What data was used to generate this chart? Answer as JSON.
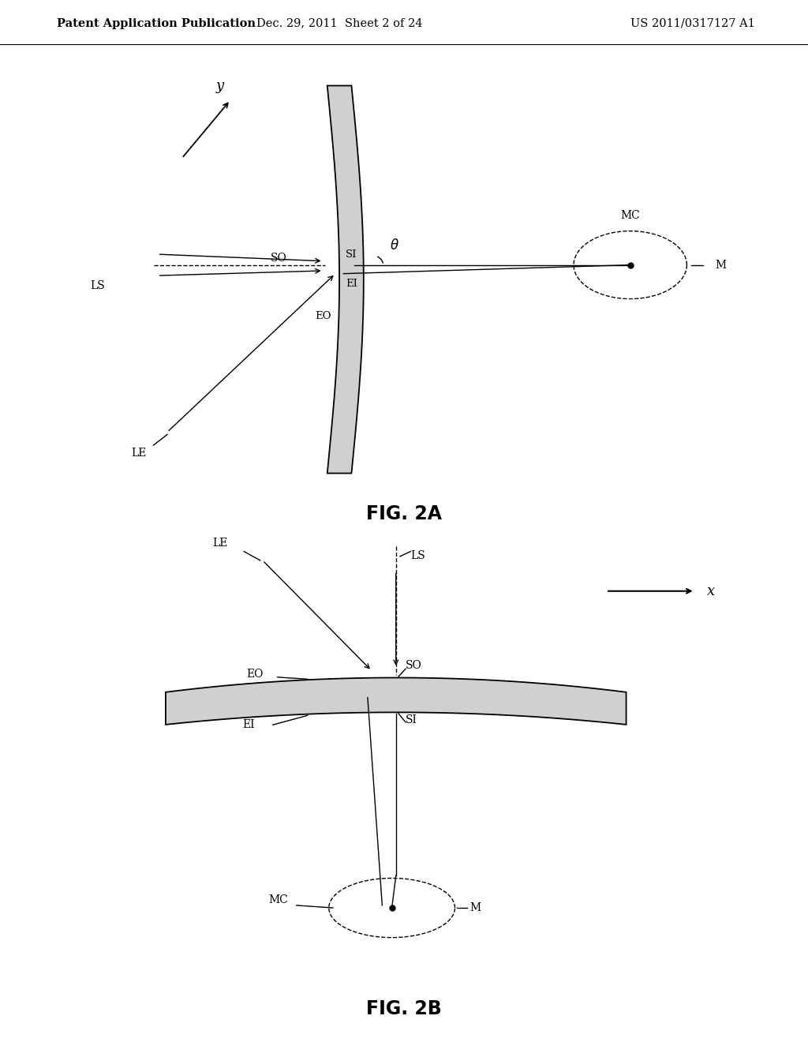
{
  "header_left": "Patent Application Publication",
  "header_mid": "Dec. 29, 2011  Sheet 2 of 24",
  "header_right": "US 2011/0317127 A1",
  "fig2a_caption": "FIG. 2A",
  "fig2b_caption": "FIG. 2B",
  "bg_color": "#ffffff",
  "line_color": "#000000"
}
